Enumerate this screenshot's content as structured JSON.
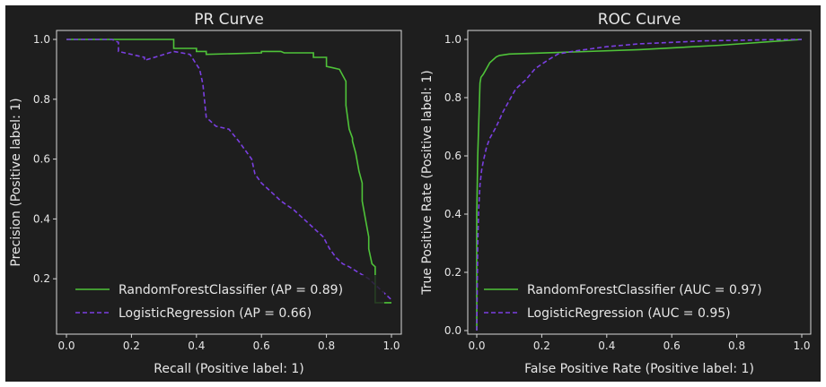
{
  "chart_data": [
    {
      "type": "line",
      "title": "PR Curve",
      "xlabel": "Recall (Positive label: 1)",
      "ylabel": "Precision (Positive label: 1)",
      "xlim": [
        0.0,
        1.0
      ],
      "ylim": [
        0.1,
        1.0
      ],
      "xticks": [
        "0.0",
        "0.2",
        "0.4",
        "0.6",
        "0.8",
        "1.0"
      ],
      "yticks": [
        "0.2",
        "0.4",
        "0.6",
        "0.8",
        "1.0"
      ],
      "legend_position": "lower-left",
      "series": [
        {
          "name": "RandomForestClassifier (AP = 0.89)",
          "color": "#4fc339",
          "style": "solid",
          "x": [
            0.0,
            0.17,
            0.17,
            0.33,
            0.33,
            0.4,
            0.4,
            0.43,
            0.43,
            0.6,
            0.6,
            0.66,
            0.67,
            0.76,
            0.76,
            0.8,
            0.8,
            0.82,
            0.84,
            0.84,
            0.86,
            0.86,
            0.87,
            0.88,
            0.88,
            0.89,
            0.9,
            0.91,
            0.91,
            0.92,
            0.93,
            0.93,
            0.94,
            0.95,
            0.95,
            0.96,
            1.0
          ],
          "y": [
            1.0,
            1.0,
            1.0,
            1.0,
            0.97,
            0.97,
            0.96,
            0.96,
            0.95,
            0.955,
            0.96,
            0.96,
            0.955,
            0.955,
            0.94,
            0.94,
            0.91,
            0.905,
            0.9,
            0.9,
            0.86,
            0.78,
            0.7,
            0.67,
            0.66,
            0.62,
            0.56,
            0.52,
            0.46,
            0.4,
            0.34,
            0.3,
            0.25,
            0.24,
            0.12,
            0.12,
            0.12
          ]
        },
        {
          "name": "LogisticRegression (AP = 0.66)",
          "color": "#7a3fe0",
          "style": "dashed",
          "x": [
            0.0,
            0.14,
            0.16,
            0.16,
            0.24,
            0.24,
            0.33,
            0.38,
            0.41,
            0.42,
            0.43,
            0.44,
            0.46,
            0.5,
            0.53,
            0.55,
            0.57,
            0.58,
            0.6,
            0.63,
            0.66,
            0.7,
            0.73,
            0.76,
            0.79,
            0.81,
            0.83,
            0.85,
            0.87,
            0.9,
            0.93,
            0.95,
            0.98,
            1.0
          ],
          "y": [
            1.0,
            1.0,
            0.99,
            0.96,
            0.94,
            0.93,
            0.96,
            0.95,
            0.9,
            0.85,
            0.74,
            0.73,
            0.71,
            0.7,
            0.66,
            0.63,
            0.6,
            0.55,
            0.52,
            0.49,
            0.46,
            0.43,
            0.4,
            0.37,
            0.34,
            0.3,
            0.27,
            0.25,
            0.24,
            0.22,
            0.2,
            0.18,
            0.15,
            0.13
          ]
        }
      ]
    },
    {
      "type": "line",
      "title": "ROC Curve",
      "xlabel": "False Positive Rate (Positive label: 1)",
      "ylabel": "True Positive Rate (Positive label: 1)",
      "xlim": [
        0.0,
        1.0
      ],
      "ylim": [
        0.0,
        1.0
      ],
      "xticks": [
        "0.0",
        "0.2",
        "0.4",
        "0.6",
        "0.8",
        "1.0"
      ],
      "yticks": [
        "0.0",
        "0.2",
        "0.4",
        "0.6",
        "0.8",
        "1.0"
      ],
      "legend_position": "lower-right",
      "series": [
        {
          "name": "RandomForestClassifier (AUC = 0.97)",
          "color": "#4fc339",
          "style": "solid",
          "x": [
            0.0,
            0.0,
            0.003,
            0.01,
            0.013,
            0.02,
            0.03,
            0.04,
            0.06,
            0.07,
            0.1,
            0.25,
            0.5,
            0.75,
            1.0
          ],
          "y": [
            0.0,
            0.4,
            0.6,
            0.85,
            0.87,
            0.88,
            0.9,
            0.92,
            0.94,
            0.945,
            0.95,
            0.955,
            0.965,
            0.98,
            1.0
          ],
          "stepped": false
        },
        {
          "name": "LogisticRegression (AUC = 0.95)",
          "color": "#7a3fe0",
          "style": "dashed",
          "x": [
            0.0,
            0.003,
            0.006,
            0.01,
            0.015,
            0.02,
            0.03,
            0.04,
            0.05,
            0.06,
            0.08,
            0.1,
            0.12,
            0.15,
            0.18,
            0.22,
            0.25,
            0.3,
            0.4,
            0.5,
            0.6,
            0.7,
            0.8,
            0.9,
            1.0
          ],
          "y": [
            0.0,
            0.3,
            0.42,
            0.5,
            0.55,
            0.58,
            0.63,
            0.66,
            0.68,
            0.7,
            0.75,
            0.79,
            0.83,
            0.86,
            0.9,
            0.93,
            0.95,
            0.96,
            0.975,
            0.985,
            0.99,
            0.995,
            0.997,
            0.999,
            1.0
          ]
        }
      ]
    }
  ]
}
